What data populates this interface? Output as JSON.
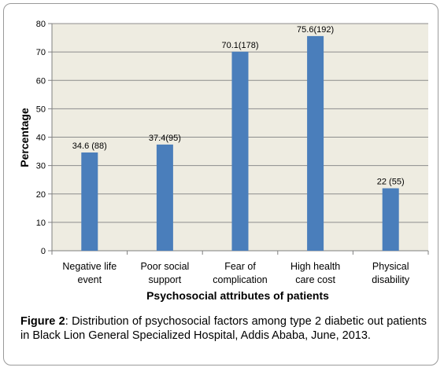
{
  "chart_data": {
    "type": "bar",
    "categories": [
      [
        "Negative life",
        "event"
      ],
      [
        "Poor social",
        "support"
      ],
      [
        "Fear of",
        "complication"
      ],
      [
        "High health",
        "care cost"
      ],
      [
        "Physical",
        "disability"
      ]
    ],
    "values": [
      34.6,
      37.4,
      70.1,
      75.6,
      22
    ],
    "data_labels": [
      "34.6 (88)",
      "37.4(95)",
      "70.1(178)",
      "75.6(192)",
      "22 (55)"
    ],
    "xlabel": "Psychosocial attributes of patients",
    "ylabel": "Percentage",
    "ylim": [
      0,
      80
    ],
    "yticks": [
      "0",
      "10",
      "20",
      "30",
      "40",
      "50",
      "60",
      "70",
      "80"
    ],
    "grid": true,
    "legend": "none",
    "colors": {
      "bar": "#4a7ebb",
      "plot_bg": "#eeece1",
      "grid": "#8c8c8c",
      "axis": "#7f7f7f"
    }
  },
  "caption": {
    "label": "Figure 2",
    "text": ": Distribution of psychosocial factors among type 2 diabetic out patients in Black Lion General Specialized Hospital, Addis Ababa, June, 2013."
  }
}
